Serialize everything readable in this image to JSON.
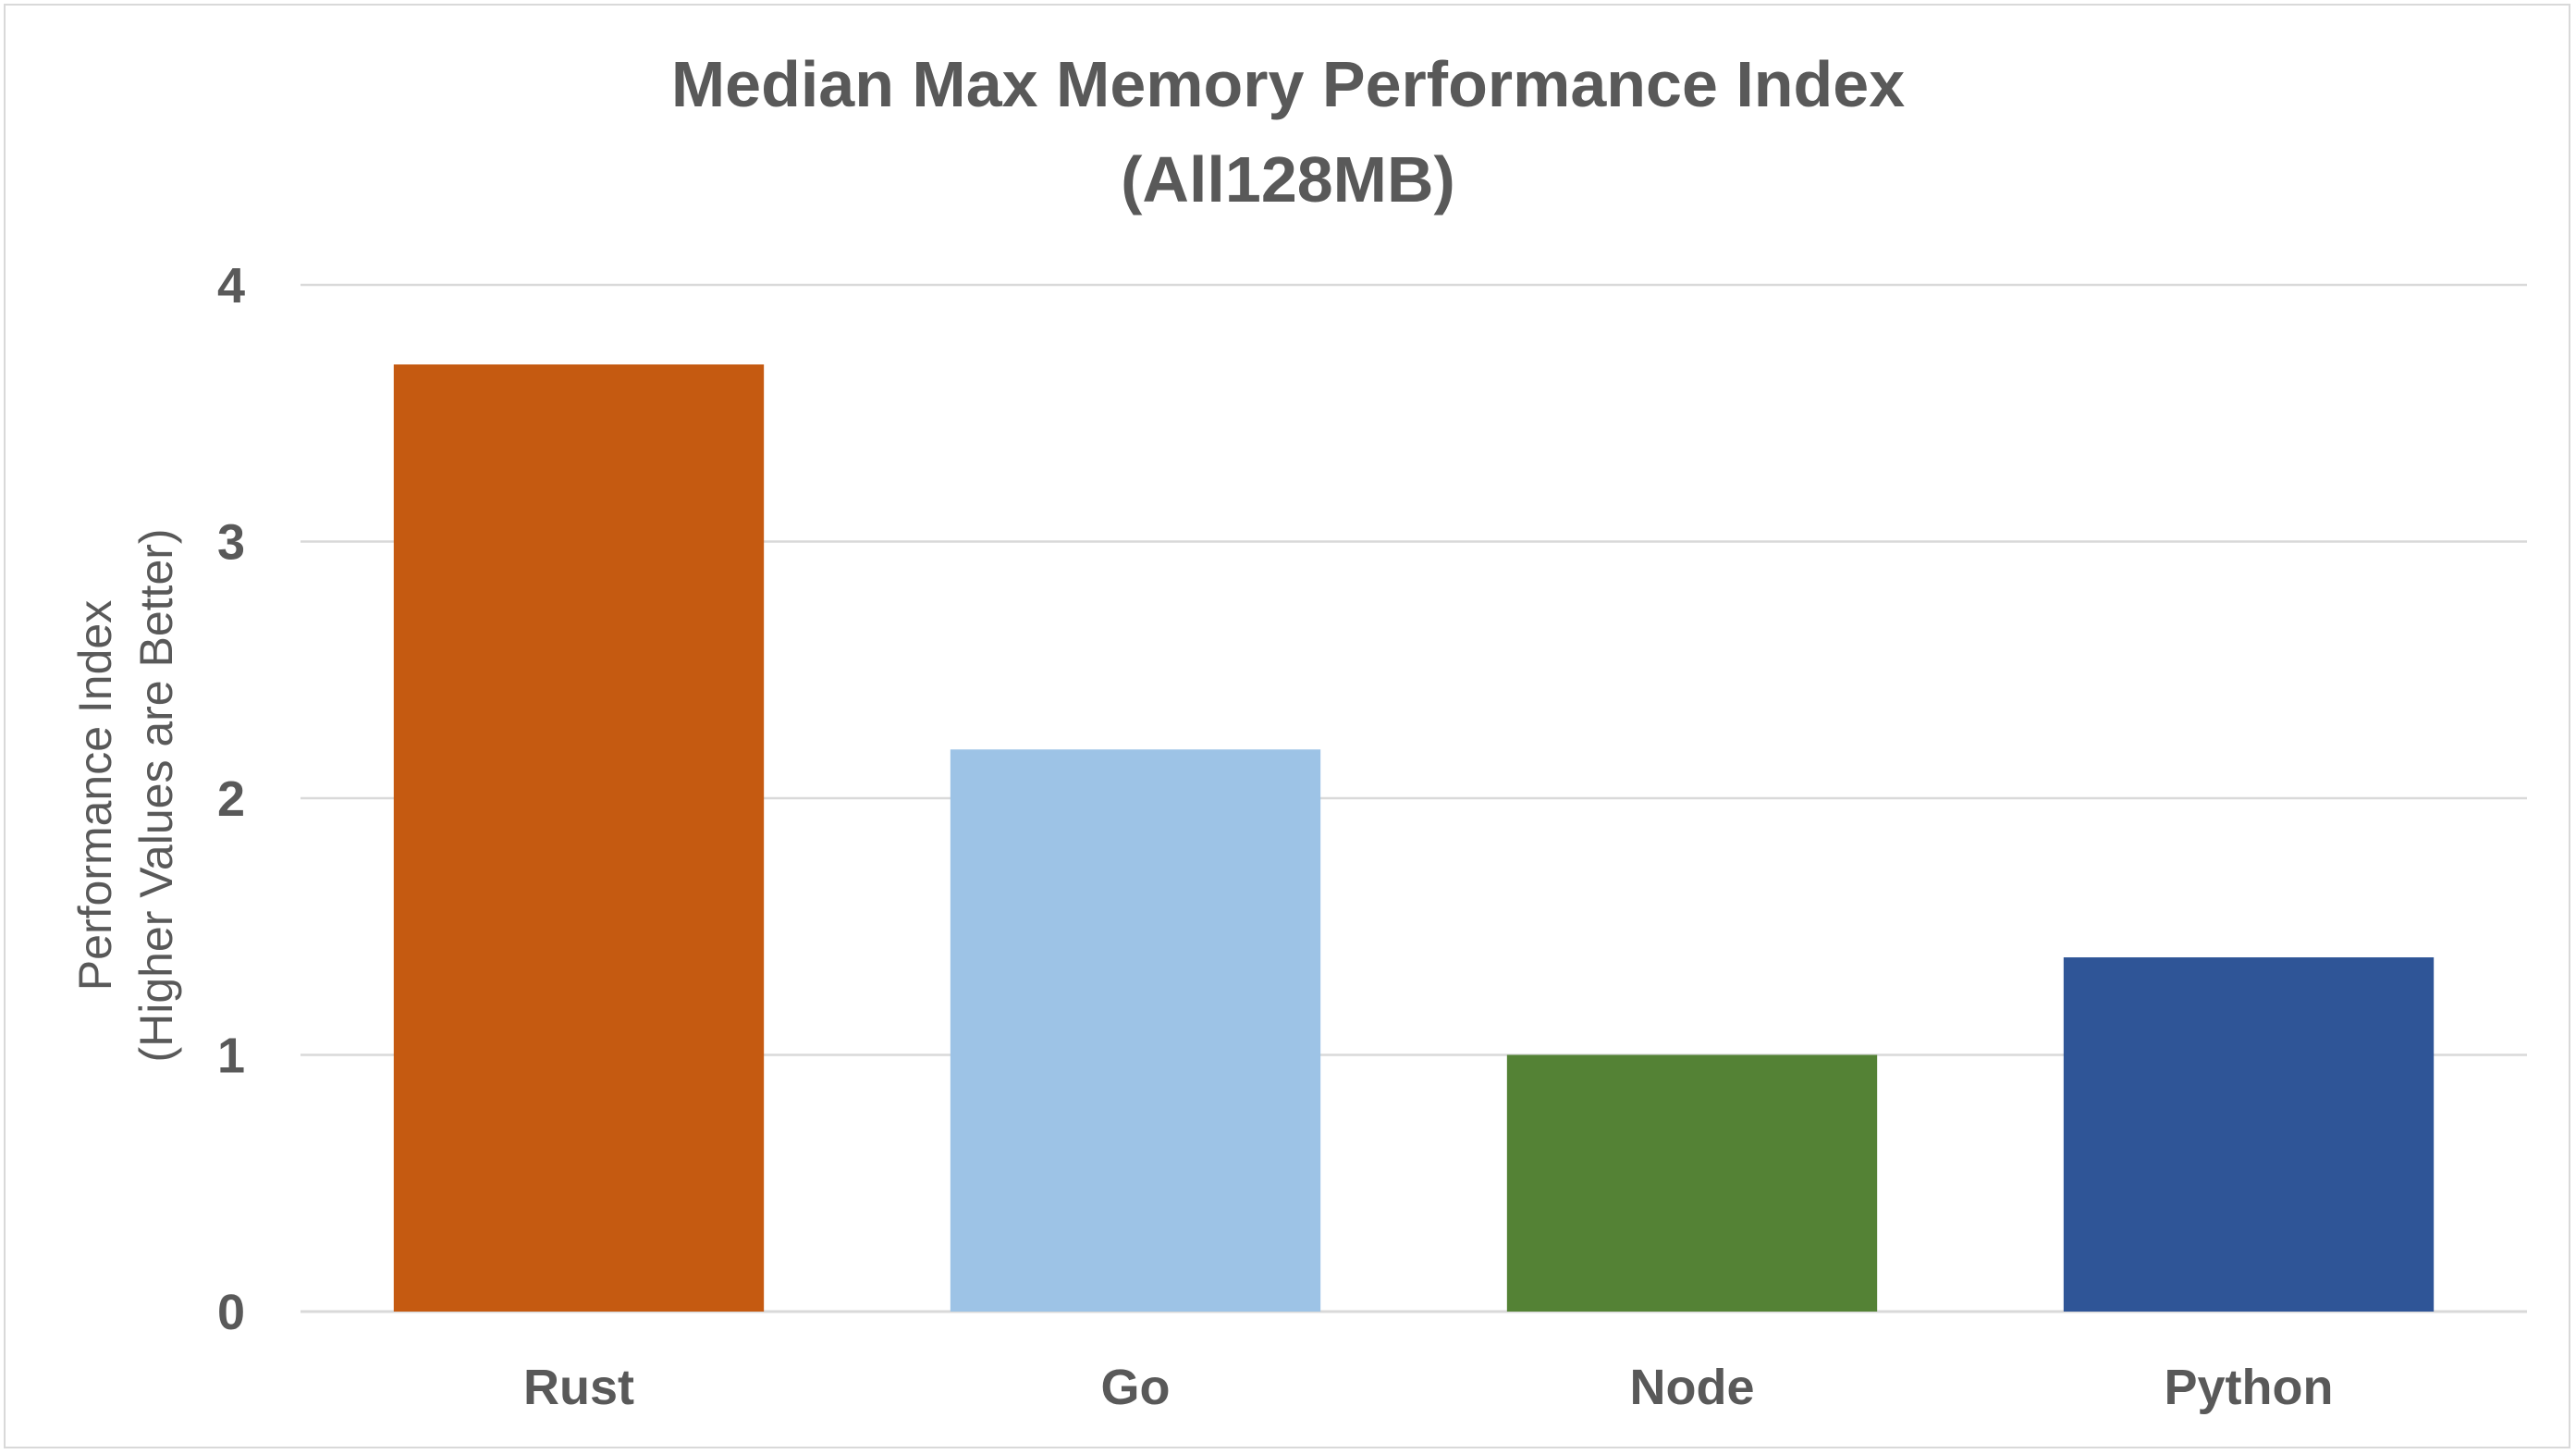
{
  "chart_data": {
    "type": "bar",
    "title": "Median Max Memory Performance Index",
    "subtitle": "(All128MB)",
    "xlabel": "",
    "ylabel": "Performance Index",
    "ylabel_line2": "(Higher Values are Better)",
    "categories": [
      "Rust",
      "Go",
      "Node",
      "Python"
    ],
    "values": [
      3.69,
      2.19,
      1.0,
      1.38
    ],
    "colors": [
      "#c55a11",
      "#9dc3e6",
      "#548235",
      "#2f5597"
    ],
    "ylim": [
      0,
      4
    ],
    "yticks": [
      "0",
      "1",
      "2",
      "3",
      "4"
    ],
    "grid": true,
    "legend": "none"
  }
}
